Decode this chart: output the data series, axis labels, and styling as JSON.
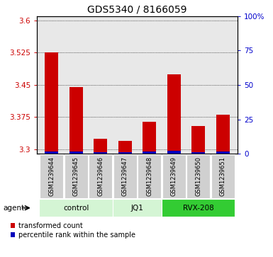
{
  "title": "GDS5340 / 8166059",
  "samples": [
    "GSM1239644",
    "GSM1239645",
    "GSM1239646",
    "GSM1239647",
    "GSM1239648",
    "GSM1239649",
    "GSM1239650",
    "GSM1239651"
  ],
  "red_values": [
    3.525,
    3.445,
    3.325,
    3.32,
    3.365,
    3.475,
    3.355,
    3.38
  ],
  "blue_pct": [
    1.8,
    1.8,
    1.2,
    1.2,
    1.5,
    2.0,
    1.3,
    1.8
  ],
  "ylim_left": [
    3.29,
    3.61
  ],
  "ylim_right": [
    0,
    100
  ],
  "yticks_left": [
    3.3,
    3.375,
    3.45,
    3.525,
    3.6
  ],
  "yticks_right": [
    0,
    25,
    50,
    75,
    100
  ],
  "groups": [
    {
      "label": "control",
      "start": 0,
      "end": 3,
      "color": "#d4f5d4"
    },
    {
      "label": "JQ1",
      "start": 3,
      "end": 5,
      "color": "#d4f5d4"
    },
    {
      "label": "RVX-208",
      "start": 5,
      "end": 8,
      "color": "#33cc33"
    }
  ],
  "agent_label": "agent",
  "bar_color_red": "#cc0000",
  "bar_color_blue": "#0000bb",
  "bar_width": 0.55,
  "background_color": "#ffffff",
  "plot_bg_color": "#e8e8e8",
  "sample_box_color": "#d0d0d0",
  "legend_red": "transformed count",
  "legend_blue": "percentile rank within the sample",
  "grid_color": "#000000",
  "ytick_left_color": "#cc0000",
  "ytick_right_color": "#0000cc",
  "title_fontsize": 10
}
